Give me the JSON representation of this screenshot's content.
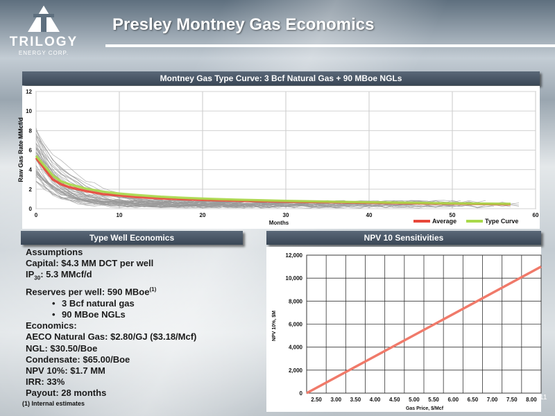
{
  "slide": {
    "title": "Presley Montney Gas Economics",
    "page_number": "11"
  },
  "logo": {
    "name": "TRILOGY",
    "subtitle": "ENERGY CORP."
  },
  "type_curve_panel": {
    "header": "Montney Gas Type Curve: 3 Bcf Natural Gas + 90 MBoe NGLs"
  },
  "economics_panel": {
    "header": "Type Well Economics",
    "assumptions_label": "Assumptions",
    "capital": "Capital: $4.3 MM DCT per well",
    "ip30_prefix": "IP",
    "ip30_sub": "30",
    "ip30_value": ": 5.3 MMcf/d",
    "reserves": "Reserves per well: 590 MBoe",
    "reserves_note": "(1)",
    "bullets": [
      "3 Bcf natural gas",
      "90 MBoe NGLs"
    ],
    "economics_label": "Economics:",
    "aeco": "AECO Natural Gas: $2.80/GJ ($3.18/Mcf)",
    "ngl": "NGL: $30.50/Boe",
    "condensate": "Condensate: $65.00/Boe",
    "npv": "NPV 10%: $1.7 MM",
    "irr": "IRR: 33%",
    "payout": "Payout: 28 months",
    "footnote": "(1) Internal estimates"
  },
  "npv_panel": {
    "header": "NPV 10 Sensitivities"
  },
  "colors": {
    "average": "#e8473a",
    "type_curve": "#a8d94a",
    "wells": "#9a9a9a",
    "npv_line": "#f07a6a"
  },
  "chart_data": [
    {
      "type": "line",
      "title": "Montney Gas Type Curve: 3 Bcf Natural Gas + 90 MBoe NGLs",
      "xlabel": "Months",
      "ylabel": "Raw Gas Rate MMcf/d",
      "xlim": [
        0,
        60
      ],
      "ylim": [
        0,
        12
      ],
      "x_ticks": [
        "0",
        "10",
        "20",
        "30",
        "40",
        "50",
        "60"
      ],
      "y_ticks": [
        "0",
        "2",
        "4",
        "6",
        "8",
        "10",
        "12"
      ],
      "grid": true,
      "legend": "bottom-right",
      "series": [
        {
          "name": "Average",
          "x": [
            0,
            1,
            2,
            3,
            4,
            6,
            8,
            10,
            12,
            15,
            18,
            21,
            24,
            30,
            36,
            42,
            48,
            54,
            57
          ],
          "values": [
            5.2,
            4.1,
            3.0,
            2.5,
            2.2,
            1.8,
            1.5,
            1.35,
            1.2,
            1.05,
            0.95,
            0.88,
            0.82,
            0.72,
            0.65,
            0.58,
            0.52,
            0.48,
            0.45
          ]
        },
        {
          "name": "Type Curve",
          "x": [
            0,
            1,
            2,
            3,
            4,
            6,
            8,
            10,
            12,
            15,
            18,
            21,
            24,
            30,
            36,
            42,
            48,
            54,
            57
          ],
          "values": [
            5.4,
            4.4,
            3.4,
            2.8,
            2.5,
            2.05,
            1.75,
            1.55,
            1.4,
            1.22,
            1.1,
            1.0,
            0.92,
            0.8,
            0.71,
            0.64,
            0.57,
            0.52,
            0.5
          ]
        }
      ]
    },
    {
      "type": "line",
      "title": "NPV 10 Sensitivities",
      "xlabel": "Gas Price, $/Mcf",
      "ylabel": "NPV 10%, $M",
      "categories": [
        "2.50",
        "3.00",
        "3.50",
        "4.00",
        "4.50",
        "5.00",
        "5.50",
        "6.00",
        "6.50",
        "7.00",
        "7.50",
        "8.00"
      ],
      "x_range": [
        2.25,
        8.25
      ],
      "ylim": [
        0,
        12000
      ],
      "y_ticks": [
        "0",
        "2,000",
        "4,000",
        "6,000",
        "8,000",
        "10,000",
        "12,000"
      ],
      "grid": true,
      "series": [
        {
          "x": [
            2.25,
            8.25
          ],
          "values": [
            0,
            11000
          ]
        }
      ]
    }
  ]
}
